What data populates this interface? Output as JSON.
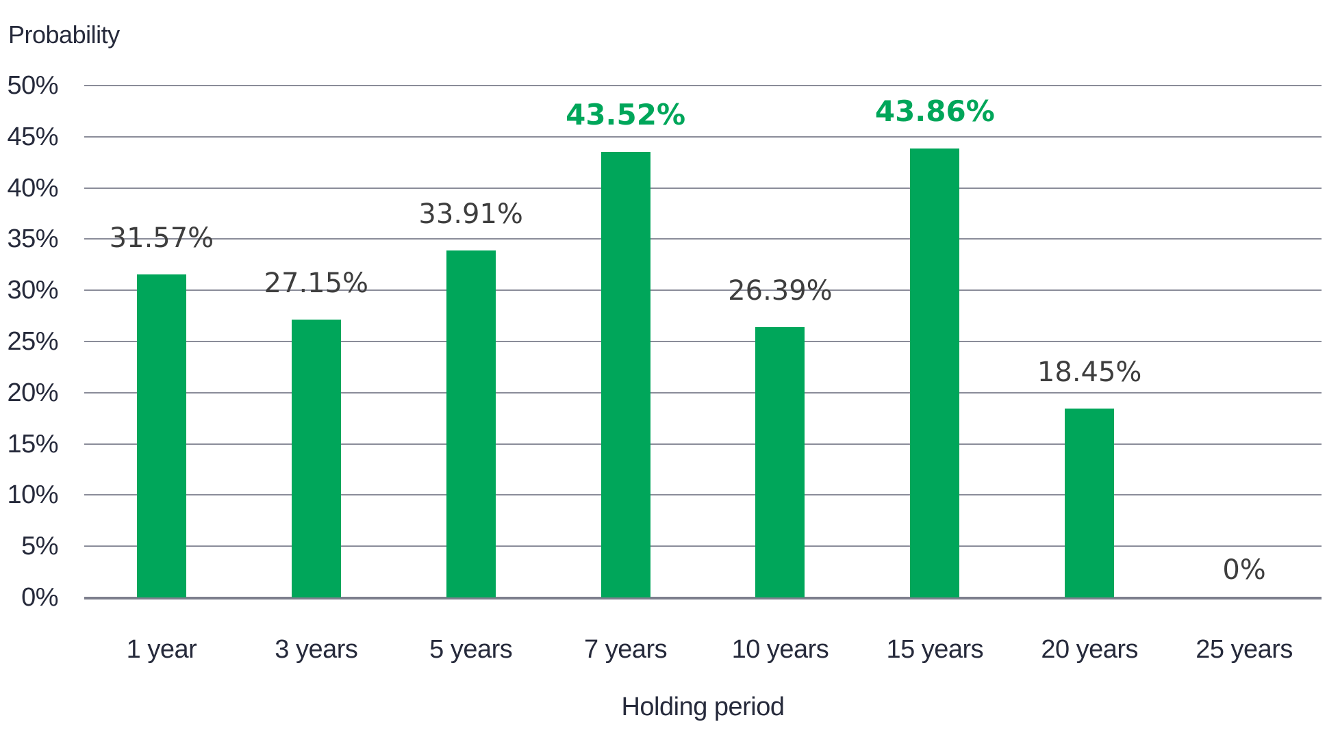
{
  "chart_data": {
    "type": "bar",
    "title": "",
    "ylabel": "Probability",
    "xlabel": "Holding period",
    "categories": [
      "1 year",
      "3 years",
      "5 years",
      "7 years",
      "10 years",
      "15 years",
      "20 years",
      "25 years"
    ],
    "values": [
      31.57,
      27.15,
      33.91,
      43.52,
      26.39,
      43.86,
      18.45,
      0
    ],
    "value_labels": [
      "31.57%",
      "27.15%",
      "33.91%",
      "43.52%",
      "26.39%",
      "43.86%",
      "18.45%",
      "0%"
    ],
    "highlighted": [
      false,
      false,
      false,
      true,
      false,
      true,
      false,
      false
    ],
    "ylim": [
      0,
      50
    ],
    "yticks": [
      {
        "value": 50,
        "label": "50%"
      },
      {
        "value": 45,
        "label": "45%"
      },
      {
        "value": 40,
        "label": "40%"
      },
      {
        "value": 35,
        "label": "35%"
      },
      {
        "value": 30,
        "label": "30%"
      },
      {
        "value": 25,
        "label": "25%"
      },
      {
        "value": 20,
        "label": "20%"
      },
      {
        "value": 15,
        "label": "15%"
      },
      {
        "value": 10,
        "label": "10%"
      },
      {
        "value": 5,
        "label": "5%"
      },
      {
        "value": 0,
        "label": "0%"
      }
    ],
    "grid": "horizontal",
    "legend": "none",
    "colors": {
      "bar": "#00a65a",
      "highlight_label": "#00a65a",
      "value_label": "#3e3e3e",
      "axis_text": "#262a3b",
      "gridline": "#8a8c99"
    }
  }
}
